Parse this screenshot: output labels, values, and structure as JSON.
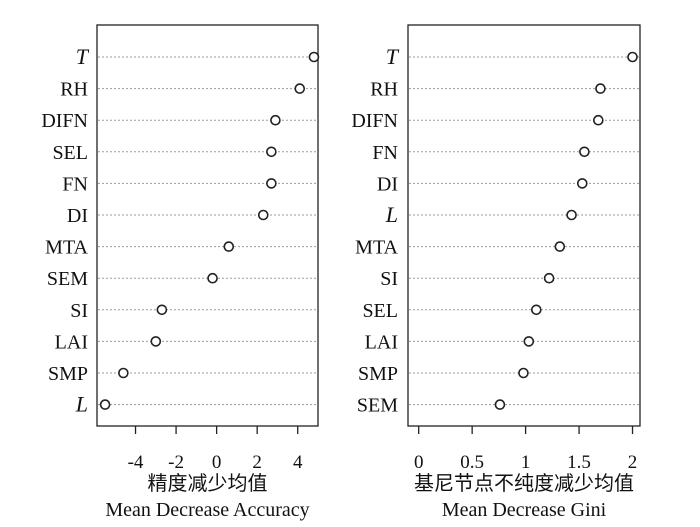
{
  "chart_data": [
    {
      "type": "scatter",
      "categories": [
        "T",
        "RH",
        "DIFN",
        "SEL",
        "FN",
        "DI",
        "MTA",
        "SEM",
        "SI",
        "LAI",
        "SMP",
        "L"
      ],
      "italic_categories": [
        "T",
        "L"
      ],
      "values": [
        4.8,
        4.1,
        2.9,
        2.7,
        2.7,
        2.3,
        0.6,
        -0.2,
        -2.7,
        -3.0,
        -4.6,
        -5.5
      ],
      "xticks": [
        -4,
        -2,
        0,
        2,
        4
      ],
      "xlim": [
        -5.9,
        5.0
      ],
      "xlabel_lines": [
        "精度减少均值",
        "Mean Decrease Accuracy"
      ],
      "grid": "horizontal dotted"
    },
    {
      "type": "scatter",
      "categories": [
        "T",
        "RH",
        "DIFN",
        "FN",
        "DI",
        "L",
        "MTA",
        "SI",
        "SEL",
        "LAI",
        "SMP",
        "SEM"
      ],
      "italic_categories": [
        "T",
        "L"
      ],
      "values": [
        2.0,
        1.7,
        1.68,
        1.55,
        1.53,
        1.43,
        1.32,
        1.22,
        1.1,
        1.03,
        0.98,
        0.76
      ],
      "xticks": [
        0,
        0.5,
        1,
        1.5,
        2
      ],
      "xlim": [
        -0.1,
        2.07
      ],
      "xlabel_lines": [
        "基尼节点不纯度减少均值",
        "Mean Decrease Gini"
      ],
      "grid": "horizontal dotted"
    }
  ]
}
